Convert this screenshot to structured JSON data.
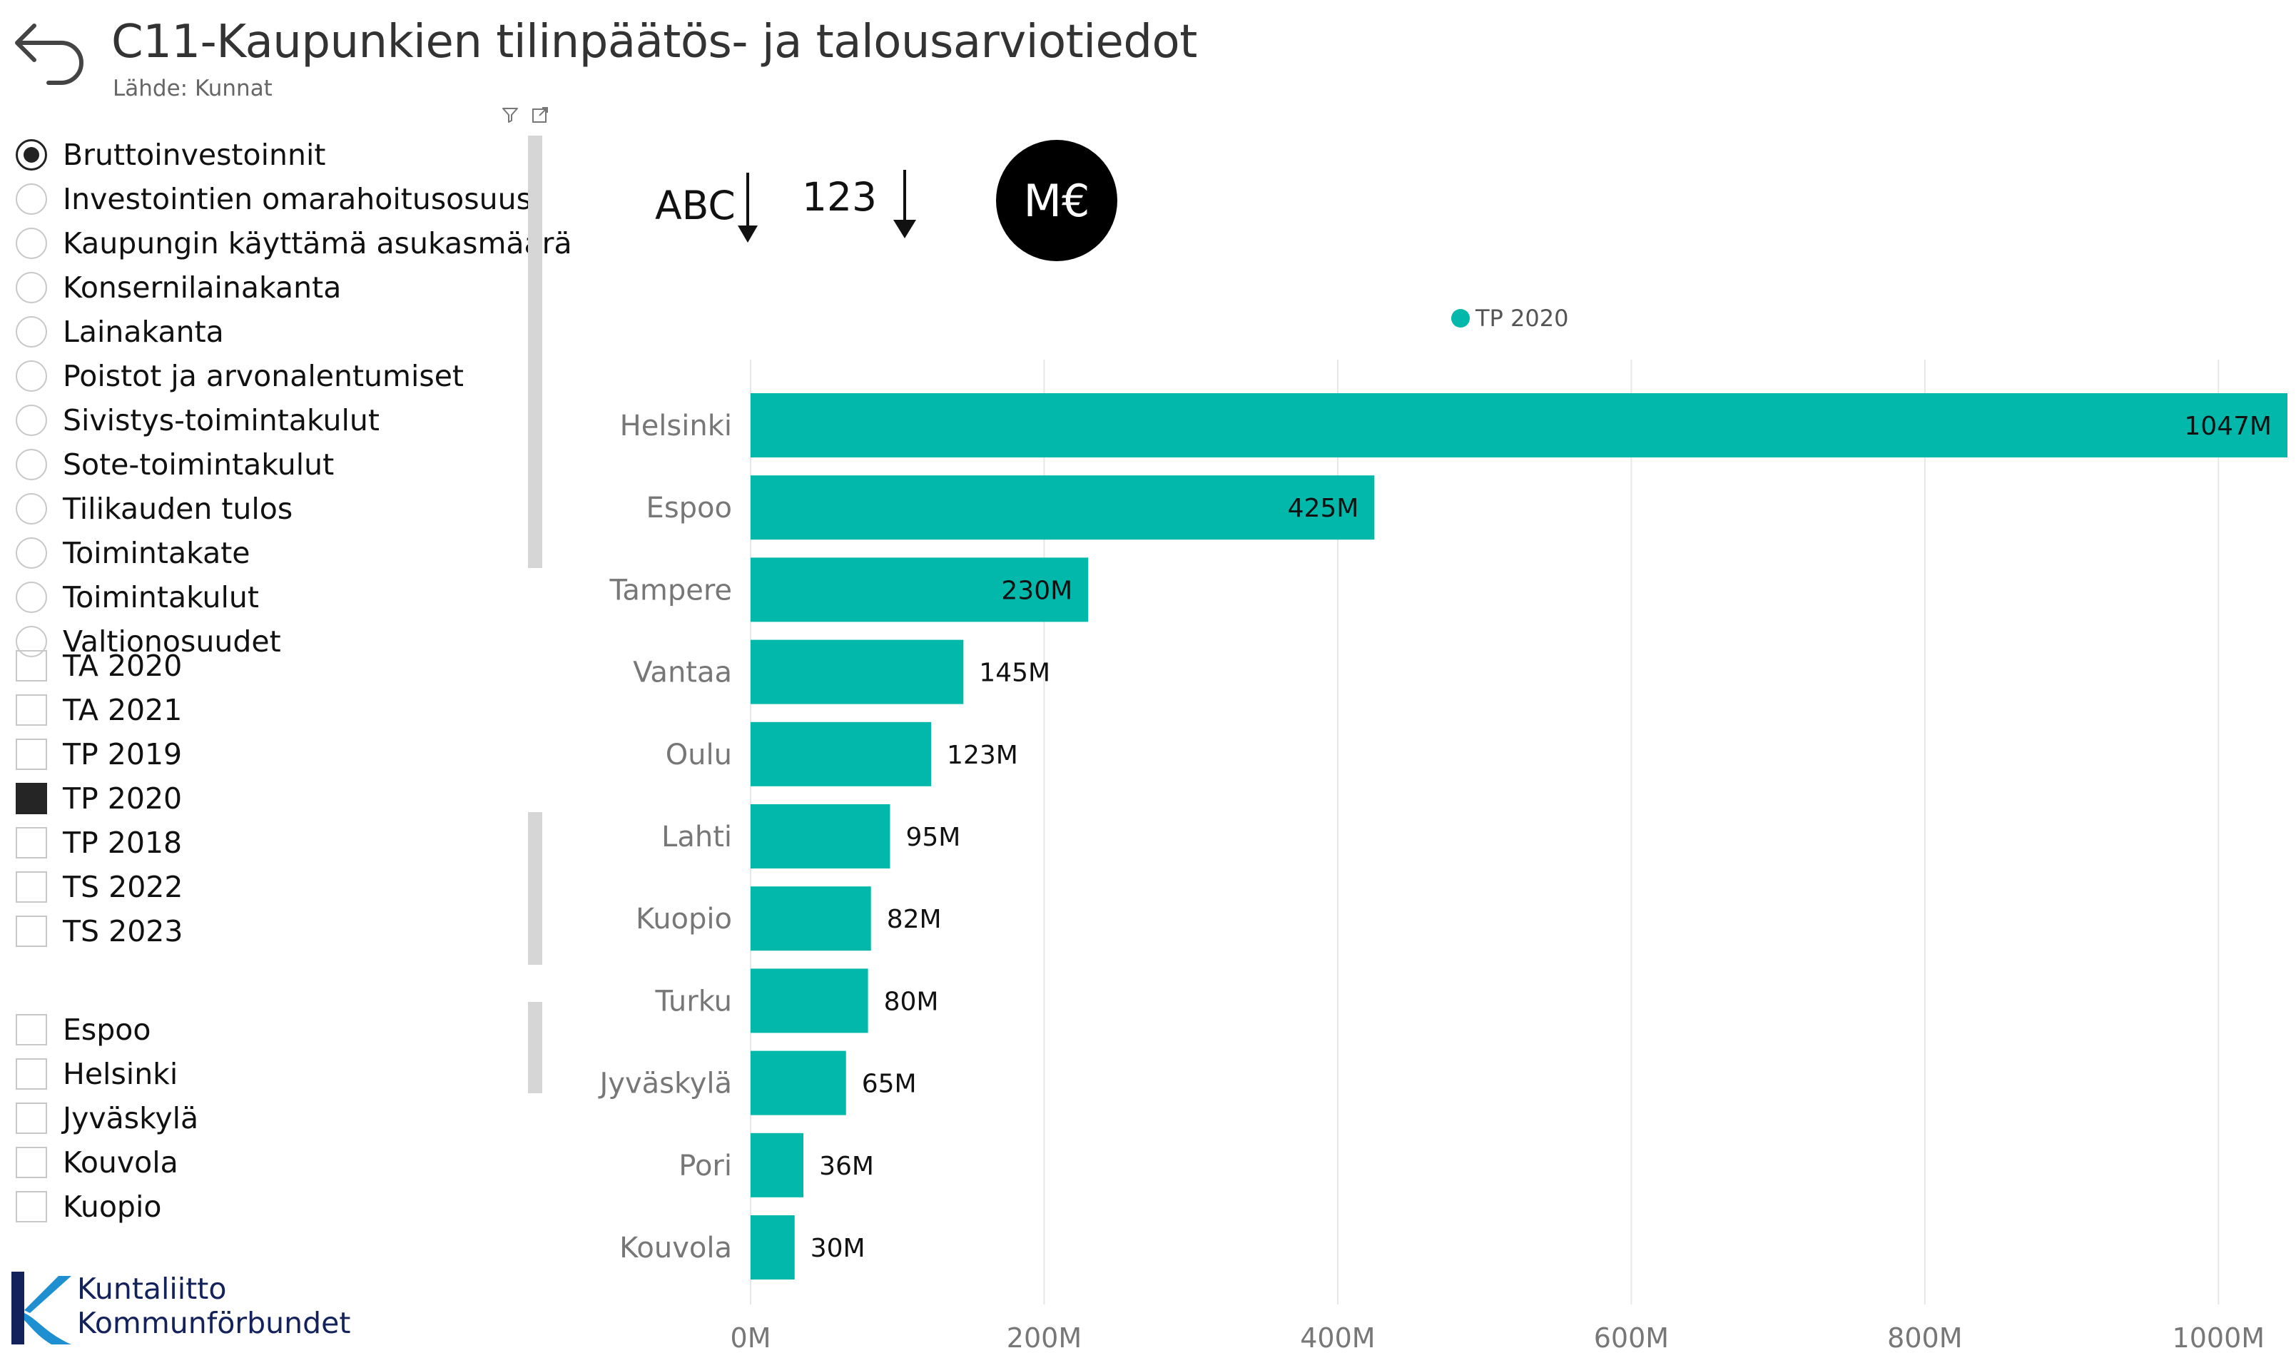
{
  "header": {
    "title": "C11-Kaupunkien tilinpäätös- ja talousarviotiedot",
    "subtitle": "Lähde: Kunnat"
  },
  "icons": {
    "back": "back-arrow-icon",
    "filter": "filter-icon",
    "focus": "focus-mode-icon"
  },
  "measure_slicer": {
    "options": [
      {
        "label": "Bruttoinvestoinnit",
        "selected": true
      },
      {
        "label": "Investointien omarahoitusosuus",
        "selected": false
      },
      {
        "label": "Kaupungin käyttämä asukasmäärä",
        "selected": false
      },
      {
        "label": "Konsernilainakanta",
        "selected": false
      },
      {
        "label": "Lainakanta",
        "selected": false
      },
      {
        "label": "Poistot ja arvonalentumiset",
        "selected": false
      },
      {
        "label": "Sivistys-toimintakulut",
        "selected": false
      },
      {
        "label": "Sote-toimintakulut",
        "selected": false
      },
      {
        "label": "Tilikauden tulos",
        "selected": false
      },
      {
        "label": "Toimintakate",
        "selected": false
      },
      {
        "label": "Toimintakulut",
        "selected": false
      },
      {
        "label": "Valtionosuudet",
        "selected": false
      }
    ]
  },
  "year_slicer": {
    "options": [
      {
        "label": "TA 2020",
        "checked": false
      },
      {
        "label": "TA 2021",
        "checked": false
      },
      {
        "label": "TP 2019",
        "checked": false
      },
      {
        "label": "TP 2020",
        "checked": true
      },
      {
        "label": "TP 2018",
        "checked": false
      },
      {
        "label": "TS 2022",
        "checked": false
      },
      {
        "label": "TS 2023",
        "checked": false
      }
    ]
  },
  "city_slicer": {
    "options": [
      {
        "label": "Espoo",
        "checked": false
      },
      {
        "label": "Helsinki",
        "checked": false
      },
      {
        "label": "Jyväskylä",
        "checked": false
      },
      {
        "label": "Kouvola",
        "checked": false
      },
      {
        "label": "Kuopio",
        "checked": false
      }
    ]
  },
  "controls": {
    "sort_alpha": "ABC",
    "sort_numeric": "123",
    "unit": "M€"
  },
  "logo": {
    "line1": "Kuntaliitto",
    "line2": "Kommunförbundet"
  },
  "chart_data": {
    "type": "bar",
    "orientation": "horizontal",
    "categories": [
      "Helsinki",
      "Espoo",
      "Tampere",
      "Vantaa",
      "Oulu",
      "Lahti",
      "Kuopio",
      "Turku",
      "Jyväskylä",
      "Pori",
      "Kouvola"
    ],
    "series": [
      {
        "name": "TP 2020",
        "color": "#01b8aa",
        "values": [
          1047,
          425,
          230,
          145,
          123,
          95,
          82,
          80,
          65,
          36,
          30
        ],
        "labels": [
          "1047M",
          "425M",
          "230M",
          "145M",
          "123M",
          "95M",
          "82M",
          "80M",
          "65M",
          "36M",
          "30M"
        ]
      }
    ],
    "x_ticks": [
      0,
      200,
      400,
      600,
      800,
      1000
    ],
    "x_tick_labels": [
      "0M",
      "200M",
      "400M",
      "600M",
      "800M",
      "1000M"
    ],
    "xlim": [
      0,
      1047
    ],
    "grid": true,
    "legend_position": "top-center"
  }
}
